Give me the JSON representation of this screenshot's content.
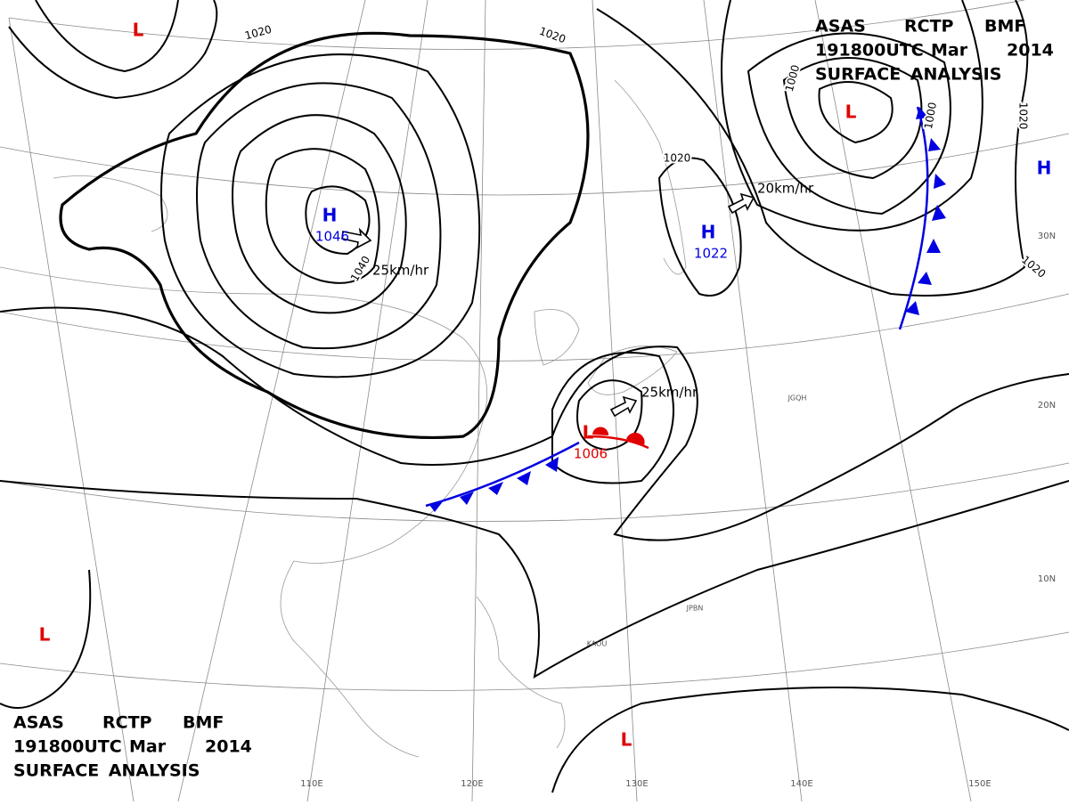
{
  "header_top": {
    "line1": [
      "ASAS",
      "RCTP",
      "BMF"
    ],
    "line2": [
      "191800UTC",
      "Mar",
      "2014"
    ],
    "line3": "SURFACE ANALYSIS"
  },
  "header_bottom": {
    "line1": [
      "ASAS",
      "RCTP",
      "BMF"
    ],
    "line2": [
      "191800UTC",
      "Mar",
      "2014"
    ],
    "line3": "SURFACE ANALYSIS"
  },
  "centers": [
    {
      "symbol": "H",
      "pressure": 1046
    },
    {
      "symbol": "H",
      "pressure": 1022
    },
    {
      "symbol": "L",
      "pressure": 1006
    },
    {
      "symbol": "L"
    },
    {
      "symbol": "L"
    },
    {
      "symbol": "L"
    },
    {
      "symbol": "L"
    },
    {
      "symbol": "H"
    }
  ],
  "motion_labels": [
    "25km/hr",
    "25km/hr",
    "20km/hr"
  ],
  "isobar_labels": [
    1020,
    1020,
    1040,
    1020,
    1000,
    1000,
    1020,
    1020
  ],
  "longitude_labels": [
    "110E",
    "120E",
    "130E",
    "140E",
    "150E"
  ],
  "latitude_labels": [
    "30N",
    "20N",
    "10N"
  ],
  "station_ids": [
    "JGQH",
    "JPBN",
    "KAOU"
  ]
}
